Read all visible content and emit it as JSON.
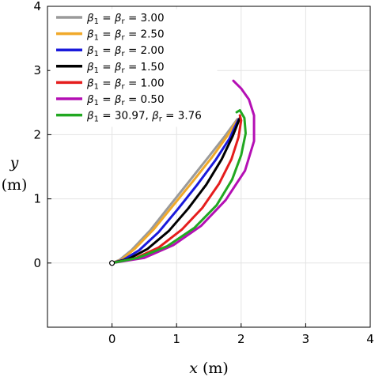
{
  "chart_data": {
    "type": "line",
    "xlabel": {
      "var": "x",
      "unit": "(m)"
    },
    "ylabel": {
      "var": "y",
      "unit": "(m)"
    },
    "xlim": [
      -1,
      4
    ],
    "ylim": [
      -1,
      4
    ],
    "xticks": [
      0,
      1,
      2,
      3,
      4
    ],
    "yticks": [
      0,
      1,
      2,
      3,
      4
    ],
    "grid": true,
    "legend_position": "top-left",
    "start_marker": {
      "x": 0,
      "y": 0
    },
    "series": [
      {
        "legend": {
          "a": "1",
          "b": "r",
          "text": " = 3.00"
        },
        "color": "#9a9a9a",
        "points": [
          [
            0,
            0
          ],
          [
            0.12,
            0.05
          ],
          [
            0.3,
            0.2
          ],
          [
            0.6,
            0.52
          ],
          [
            0.9,
            0.9
          ],
          [
            1.2,
            1.28
          ],
          [
            1.5,
            1.66
          ],
          [
            1.75,
            1.98
          ],
          [
            1.94,
            2.24
          ]
        ]
      },
      {
        "legend": {
          "a": "1",
          "b": "r",
          "text": " = 2.50"
        },
        "color": "#f0a92a",
        "points": [
          [
            0,
            0
          ],
          [
            0.15,
            0.05
          ],
          [
            0.35,
            0.22
          ],
          [
            0.65,
            0.53
          ],
          [
            0.95,
            0.9
          ],
          [
            1.25,
            1.27
          ],
          [
            1.55,
            1.65
          ],
          [
            1.78,
            1.97
          ],
          [
            1.95,
            2.24
          ]
        ]
      },
      {
        "legend": {
          "a": "1",
          "b": "r",
          "text": " = 2.00"
        },
        "color": "#1a1adb",
        "points": [
          [
            0,
            0
          ],
          [
            0.18,
            0.05
          ],
          [
            0.42,
            0.2
          ],
          [
            0.72,
            0.48
          ],
          [
            1.02,
            0.84
          ],
          [
            1.32,
            1.22
          ],
          [
            1.6,
            1.6
          ],
          [
            1.82,
            1.94
          ],
          [
            1.96,
            2.24
          ]
        ]
      },
      {
        "legend": {
          "a": "1",
          "b": "r",
          "text": " = 1.50"
        },
        "color": "#000000",
        "points": [
          [
            0,
            0
          ],
          [
            0.25,
            0.06
          ],
          [
            0.55,
            0.22
          ],
          [
            0.88,
            0.5
          ],
          [
            1.18,
            0.85
          ],
          [
            1.46,
            1.22
          ],
          [
            1.7,
            1.62
          ],
          [
            1.87,
            1.98
          ],
          [
            1.98,
            2.26
          ]
        ]
      },
      {
        "legend": {
          "a": "1",
          "b": "r",
          "text": " = 1.00"
        },
        "color": "#e51d1d",
        "points": [
          [
            0,
            0
          ],
          [
            0.35,
            0.07
          ],
          [
            0.72,
            0.24
          ],
          [
            1.08,
            0.52
          ],
          [
            1.4,
            0.86
          ],
          [
            1.66,
            1.24
          ],
          [
            1.85,
            1.62
          ],
          [
            1.96,
            1.96
          ],
          [
            2.0,
            2.22
          ],
          [
            1.98,
            2.3
          ]
        ]
      },
      {
        "legend": {
          "a": "1",
          "b": "r",
          "text": " = 0.50"
        },
        "color": "#b40fb4",
        "points": [
          [
            0,
            0
          ],
          [
            0.5,
            0.08
          ],
          [
            0.95,
            0.28
          ],
          [
            1.38,
            0.58
          ],
          [
            1.76,
            0.98
          ],
          [
            2.06,
            1.44
          ],
          [
            2.2,
            1.9
          ],
          [
            2.2,
            2.3
          ],
          [
            2.12,
            2.55
          ],
          [
            2.0,
            2.72
          ],
          [
            1.88,
            2.84
          ]
        ]
      },
      {
        "legend": {
          "a": "1",
          "b": "r",
          "text": " = 30.97,  ",
          "b_value": " = 3.76"
        },
        "color": "#21a821",
        "points": [
          [
            0,
            0
          ],
          [
            0.4,
            0.08
          ],
          [
            0.85,
            0.26
          ],
          [
            1.28,
            0.55
          ],
          [
            1.62,
            0.9
          ],
          [
            1.86,
            1.3
          ],
          [
            2.0,
            1.68
          ],
          [
            2.07,
            2.02
          ],
          [
            2.05,
            2.26
          ],
          [
            1.98,
            2.38
          ],
          [
            1.93,
            2.35
          ]
        ]
      }
    ]
  }
}
